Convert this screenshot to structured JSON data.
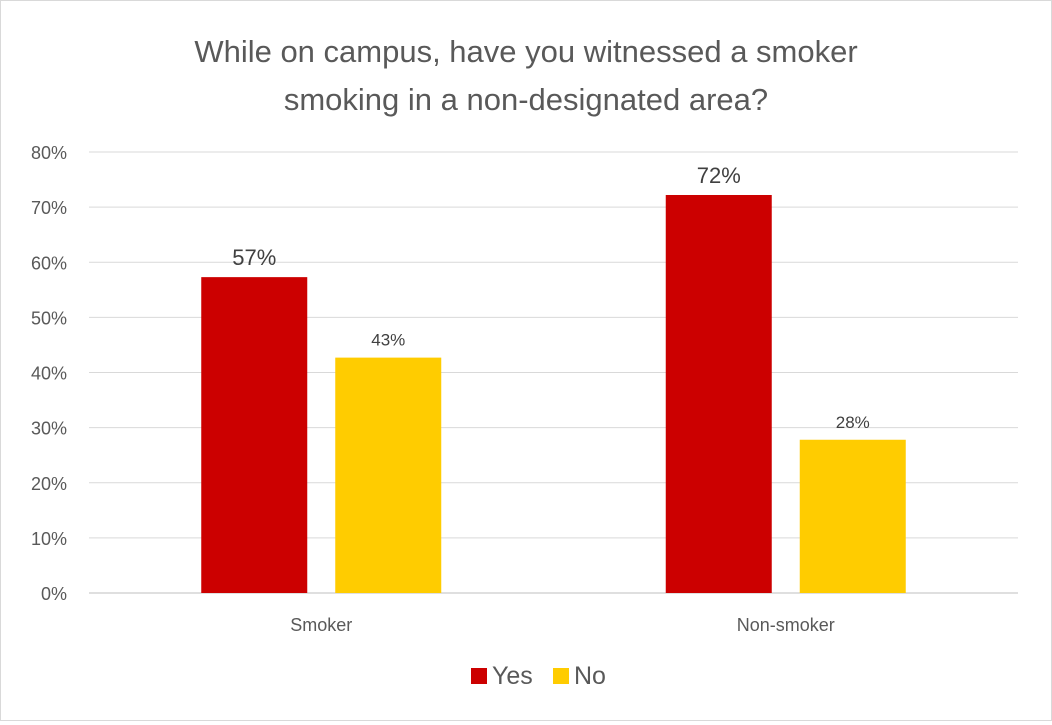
{
  "chart_data": {
    "type": "bar",
    "title": "While on campus, have you witnessed a smoker smoking in a non-designated area?",
    "title_lines": [
      "While on campus, have you witnessed a smoker",
      "smoking in a non-designated area?"
    ],
    "categories": [
      "Smoker",
      "Non-smoker"
    ],
    "series": [
      {
        "name": "Yes",
        "color": "#cc0000",
        "values": [
          57.3,
          72.2
        ],
        "data_labels": [
          "57%",
          "72%"
        ]
      },
      {
        "name": "No",
        "color": "#ffcc00",
        "values": [
          42.7,
          27.8
        ],
        "data_labels": [
          "43%",
          "28%"
        ]
      }
    ],
    "ylim": [
      0,
      80
    ],
    "y_ticks": [
      0,
      10,
      20,
      30,
      40,
      50,
      60,
      70,
      80
    ],
    "y_tick_labels": [
      "0%",
      "10%",
      "20%",
      "30%",
      "40%",
      "50%",
      "60%",
      "70%",
      "80%"
    ],
    "xlabel": "",
    "ylabel": "",
    "grid": true,
    "legend_position": "bottom"
  }
}
